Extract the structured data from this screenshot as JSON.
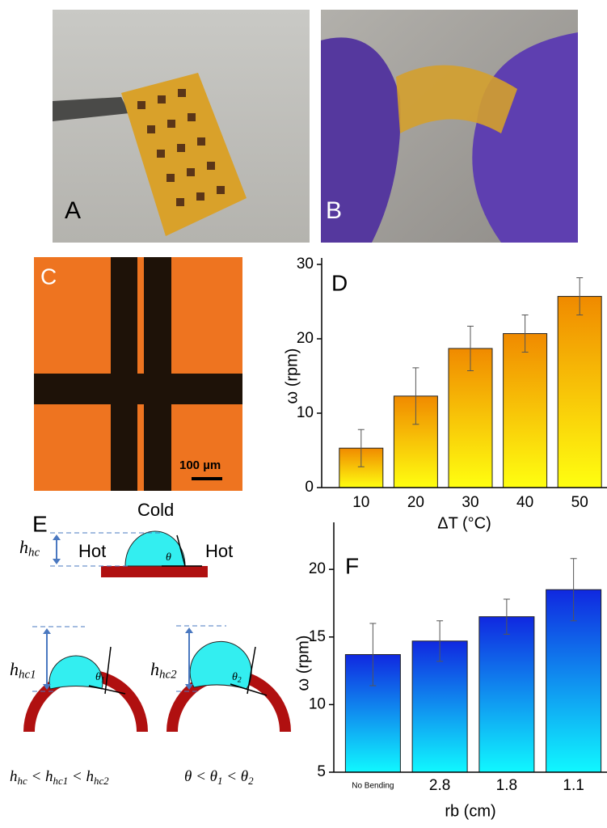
{
  "panels": {
    "A": "A",
    "B": "B",
    "C": "C",
    "E": "E",
    "scale_bar": "100 µm"
  },
  "diagram": {
    "cold": "Cold",
    "hot_left": "Hot",
    "hot_right": "Hot",
    "h_flat": [
      {
        "main": "h",
        "sub": "hc"
      }
    ],
    "h_bent1": [
      {
        "main": "h",
        "sub": "hc1"
      }
    ],
    "h_bent2": [
      {
        "main": "h",
        "sub": "hc2"
      }
    ],
    "theta": [
      {
        "main": "θ"
      }
    ],
    "theta1": [
      {
        "main": "θ",
        "sub": "1"
      }
    ],
    "theta2": [
      {
        "main": "θ",
        "sub": "2"
      }
    ],
    "relation_h": [
      {
        "main": "h",
        "sub": "hc"
      },
      {
        "main": " < h",
        "sub": "hc1"
      },
      {
        "main": " < h",
        "sub": "hc2"
      }
    ],
    "relation_theta": [
      {
        "main": "θ < θ",
        "sub": "1"
      },
      {
        "main": " < θ",
        "sub": "2"
      }
    ]
  },
  "chart_data": [
    {
      "type": "bar",
      "panel_label": "D",
      "categories": [
        "10",
        "20",
        "30",
        "40",
        "50"
      ],
      "values": [
        5.3,
        12.3,
        18.7,
        20.7,
        25.7
      ],
      "errors": [
        2.5,
        3.8,
        3.0,
        2.5,
        2.5
      ],
      "gradient": [
        "#f08a00",
        "#ffff10"
      ],
      "ylim": [
        0,
        30
      ],
      "yticks": [
        0,
        10,
        20,
        30
      ],
      "ylabel": "ω (rpm)",
      "xlabel": "ΔT (°C)"
    },
    {
      "type": "bar",
      "panel_label": "F",
      "categories": [
        "No Bending",
        "2.8",
        "1.8",
        "1.1"
      ],
      "values": [
        13.7,
        14.7,
        16.5,
        18.5
      ],
      "errors": [
        2.3,
        1.5,
        1.3,
        2.3
      ],
      "gradient": [
        "#1028e0",
        "#10f8ff"
      ],
      "ylim": [
        5,
        23
      ],
      "yticks": [
        5,
        10,
        15,
        20
      ],
      "ylabel": "ω (rpm)",
      "xlabel": "rb (cm)"
    }
  ]
}
